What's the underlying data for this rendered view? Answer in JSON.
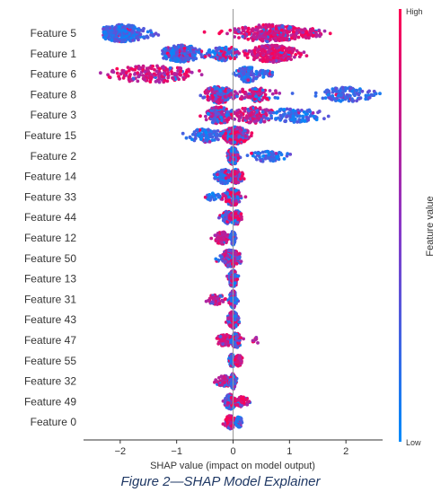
{
  "figure": {
    "caption": "Figure 2—SHAP Model Explainer"
  },
  "chart_data": {
    "type": "beeswarm",
    "xlabel": "SHAP value (impact on model output)",
    "xlim": [
      -2.65,
      2.65
    ],
    "xticks": [
      -2,
      -1,
      0,
      1,
      2
    ],
    "colorbar": {
      "title": "Feature value",
      "high_label": "High",
      "low_label": "Low"
    },
    "colors": {
      "low": "#008bfb",
      "mid": "#8a37c7",
      "high": "#ff0052",
      "zero_line": "#999999",
      "axis": "#333333"
    },
    "features": [
      {
        "name": "Feature 5",
        "min": -2.3,
        "max": 1.75,
        "clusters": [
          {
            "c": -1.95,
            "w": 0.35,
            "n": 320,
            "hi": 0.04
          },
          {
            "c": 0.65,
            "w": 0.5,
            "n": 300,
            "hi": 0.85
          },
          {
            "c": 1.35,
            "w": 0.2,
            "n": 50,
            "hi": 0.95
          }
        ]
      },
      {
        "name": "Feature 1",
        "min": -1.25,
        "max": 1.55,
        "clusters": [
          {
            "c": -0.9,
            "w": 0.3,
            "n": 220,
            "hi": 0.15
          },
          {
            "c": -0.15,
            "w": 0.25,
            "n": 110,
            "hi": 0.35
          },
          {
            "c": 0.7,
            "w": 0.35,
            "n": 260,
            "hi": 0.95
          }
        ]
      },
      {
        "name": "Feature 6",
        "min": -2.35,
        "max": 0.75,
        "clusters": [
          {
            "c": -1.45,
            "w": 0.6,
            "n": 190,
            "hi": 0.95
          },
          {
            "c": 0.25,
            "w": 0.15,
            "n": 140,
            "hi": 0.05
          },
          {
            "c": 0.55,
            "w": 0.1,
            "n": 30,
            "hi": 0.1
          }
        ]
      },
      {
        "name": "Feature 8",
        "min": -0.75,
        "max": 2.65,
        "clusters": [
          {
            "c": -0.25,
            "w": 0.2,
            "n": 190,
            "hi": 0.55
          },
          {
            "c": 0.4,
            "w": 0.3,
            "n": 110,
            "hi": 0.8
          },
          {
            "c": 2.0,
            "w": 0.35,
            "n": 120,
            "hi": 0.05
          }
        ]
      },
      {
        "name": "Feature 3",
        "min": -0.65,
        "max": 1.85,
        "clusters": [
          {
            "c": -0.25,
            "w": 0.2,
            "n": 180,
            "hi": 0.6
          },
          {
            "c": 0.35,
            "w": 0.3,
            "n": 140,
            "hi": 0.8
          },
          {
            "c": 1.1,
            "w": 0.4,
            "n": 110,
            "hi": 0.05
          }
        ]
      },
      {
        "name": "Feature 15",
        "min": -0.95,
        "max": 0.55,
        "clusters": [
          {
            "c": -0.5,
            "w": 0.25,
            "n": 100,
            "hi": 0.05
          },
          {
            "c": 0.05,
            "w": 0.18,
            "n": 280,
            "hi": 0.6
          }
        ]
      },
      {
        "name": "Feature 2",
        "min": -0.15,
        "max": 1.45,
        "clusters": [
          {
            "c": 0.0,
            "w": 0.07,
            "n": 220,
            "hi": 0.55
          },
          {
            "c": 0.6,
            "w": 0.25,
            "n": 70,
            "hi": 0.1
          }
        ]
      },
      {
        "name": "Feature 14",
        "min": -0.5,
        "max": 0.4,
        "clusters": [
          {
            "c": -0.15,
            "w": 0.12,
            "n": 110,
            "hi": 0.15
          },
          {
            "c": 0.05,
            "w": 0.1,
            "n": 110,
            "hi": 0.75
          }
        ]
      },
      {
        "name": "Feature 33",
        "min": -0.6,
        "max": 0.55,
        "clusters": [
          {
            "c": 0.0,
            "w": 0.12,
            "n": 180,
            "hi": 0.55
          },
          {
            "c": -0.35,
            "w": 0.12,
            "n": 25,
            "hi": 0.05
          }
        ]
      },
      {
        "name": "Feature 44",
        "min": -0.35,
        "max": 0.3,
        "clusters": [
          {
            "c": -0.1,
            "w": 0.08,
            "n": 90,
            "hi": 0.25
          },
          {
            "c": 0.05,
            "w": 0.08,
            "n": 110,
            "hi": 0.75
          }
        ]
      },
      {
        "name": "Feature 12",
        "min": -0.45,
        "max": 0.1,
        "clusters": [
          {
            "c": -0.2,
            "w": 0.1,
            "n": 90,
            "hi": 0.9
          },
          {
            "c": 0.0,
            "w": 0.03,
            "n": 110,
            "hi": 0.05
          }
        ]
      },
      {
        "name": "Feature 50",
        "min": -0.4,
        "max": 0.5,
        "clusters": [
          {
            "c": -0.05,
            "w": 0.15,
            "n": 180,
            "hi": 0.55
          }
        ]
      },
      {
        "name": "Feature 13",
        "min": -0.25,
        "max": 0.15,
        "clusters": [
          {
            "c": 0.0,
            "w": 0.06,
            "n": 170,
            "hi": 0.5
          }
        ]
      },
      {
        "name": "Feature 31",
        "min": -0.6,
        "max": 0.15,
        "clusters": [
          {
            "c": -0.3,
            "w": 0.12,
            "n": 60,
            "hi": 0.9
          },
          {
            "c": 0.0,
            "w": 0.05,
            "n": 150,
            "hi": 0.3
          }
        ]
      },
      {
        "name": "Feature 43",
        "min": -0.25,
        "max": 0.2,
        "clusters": [
          {
            "c": 0.0,
            "w": 0.07,
            "n": 170,
            "hi": 0.6
          }
        ]
      },
      {
        "name": "Feature 47",
        "min": -0.45,
        "max": 0.5,
        "clusters": [
          {
            "c": -0.15,
            "w": 0.12,
            "n": 80,
            "hi": 0.85
          },
          {
            "c": 0.05,
            "w": 0.08,
            "n": 120,
            "hi": 0.4
          },
          {
            "c": 0.4,
            "w": 0.06,
            "n": 8,
            "hi": 0.95
          }
        ]
      },
      {
        "name": "Feature 55",
        "min": -0.15,
        "max": 0.2,
        "clusters": [
          {
            "c": -0.02,
            "w": 0.04,
            "n": 100,
            "hi": 0.1
          },
          {
            "c": 0.1,
            "w": 0.05,
            "n": 70,
            "hi": 0.95
          }
        ]
      },
      {
        "name": "Feature 32",
        "min": -0.5,
        "max": 0.15,
        "clusters": [
          {
            "c": -0.15,
            "w": 0.12,
            "n": 70,
            "hi": 0.6
          },
          {
            "c": 0.0,
            "w": 0.04,
            "n": 130,
            "hi": 0.3
          }
        ]
      },
      {
        "name": "Feature 49",
        "min": -0.3,
        "max": 0.4,
        "clusters": [
          {
            "c": -0.05,
            "w": 0.08,
            "n": 120,
            "hi": 0.5
          },
          {
            "c": 0.15,
            "w": 0.1,
            "n": 60,
            "hi": 0.8
          }
        ]
      },
      {
        "name": "Feature 0",
        "min": -0.3,
        "max": 0.2,
        "clusters": [
          {
            "c": -0.05,
            "w": 0.08,
            "n": 100,
            "hi": 0.75
          },
          {
            "c": 0.1,
            "w": 0.05,
            "n": 60,
            "hi": 0.15
          }
        ]
      }
    ]
  }
}
